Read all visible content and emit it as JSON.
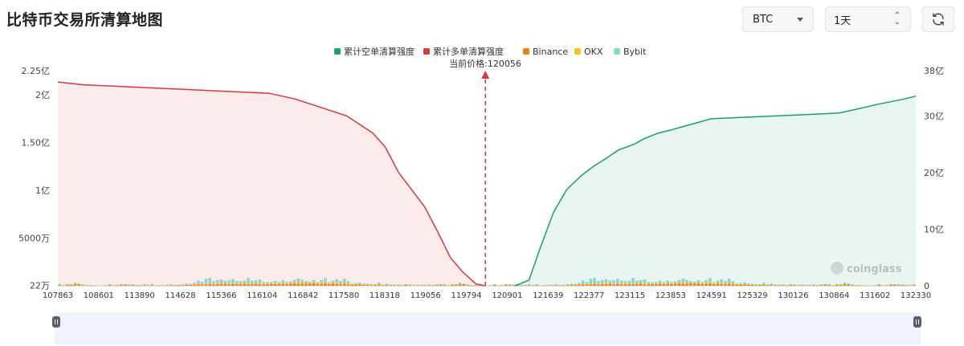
{
  "page": {
    "title": "比特币交易所清算地图"
  },
  "controls": {
    "symbol": "BTC",
    "timeframe": "1天",
    "refresh_icon": "refresh-icon"
  },
  "watermark": "coinglass",
  "chart_data": {
    "type": "bar",
    "legend": [
      {
        "name": "累计空单清算强度",
        "color": "#1a9e6f"
      },
      {
        "name": "累计多单清算强度",
        "color": "#d9363e"
      },
      {
        "name": "Binance",
        "color": "#f07f16"
      },
      {
        "name": "OKX",
        "color": "#f5c518"
      },
      {
        "name": "Bybit",
        "color": "#8fd3d6"
      }
    ],
    "legend_position": "top-center",
    "current_price_label": "当前价格:120056",
    "current_price": 120056,
    "x_ticks": [
      "107863",
      "108601",
      "113890",
      "114628",
      "115366",
      "116104",
      "116842",
      "117580",
      "118318",
      "119056",
      "119794",
      "120901",
      "121639",
      "122377",
      "123115",
      "123853",
      "124591",
      "125329",
      "130126",
      "130864",
      "131602",
      "132330"
    ],
    "y_left": {
      "ticks": [
        "22万",
        "5000万",
        "1亿",
        "1.50亿",
        "2亿",
        "2.25亿"
      ],
      "range": [
        0,
        225000000
      ]
    },
    "y_right": {
      "ticks": [
        "0",
        "10亿",
        "20亿",
        "30亿",
        "38亿"
      ],
      "range": [
        0,
        3800000000
      ]
    },
    "bar_count": 223,
    "bar_pattern": [
      [
        0.002,
        0.002,
        0.004
      ],
      [
        0.001,
        0.001,
        0.001
      ],
      [
        0.005,
        0.001,
        0.002
      ],
      [
        0.004,
        0.002,
        0.001
      ],
      [
        0.007,
        0.003,
        0.005
      ],
      [
        0.006,
        0.002,
        0.003
      ],
      [
        0.003,
        0.001,
        0.003
      ],
      [
        0.001,
        0.001,
        0.002
      ],
      [
        0.001,
        0.001,
        0.002
      ],
      [
        0.001,
        0.0,
        0.001
      ],
      [
        0.001,
        0.001,
        0.0
      ],
      [
        0.0,
        0.0,
        0.0
      ],
      [
        0.002,
        0.0,
        0.001
      ],
      [
        0.004,
        0.002,
        0.002
      ],
      [
        0.001,
        0.001,
        0.001
      ],
      [
        0.002,
        0.001,
        0.001
      ],
      [
        0.005,
        0.001,
        0.002
      ],
      [
        0.005,
        0.001,
        0.001
      ],
      [
        0.003,
        0.002,
        0.002
      ],
      [
        0.004,
        0.001,
        0.001
      ],
      [
        0.001,
        0.002,
        0.001
      ],
      [
        0.002,
        0.001,
        0.002
      ],
      [
        0.003,
        0.002,
        0.003
      ],
      [
        0.002,
        0.001,
        0.002
      ],
      [
        0.002,
        0.002,
        0.004
      ],
      [
        0.001,
        0.001,
        0.0
      ],
      [
        0.001,
        0.001,
        0.001
      ],
      [
        0.002,
        0.001,
        0.001
      ],
      [
        0.001,
        0.002,
        0.003
      ],
      [
        0.003,
        0.002,
        0.002
      ],
      [
        0.002,
        0.001,
        0.001
      ],
      [
        0.002,
        0.002,
        0.001
      ],
      [
        0.003,
        0.002,
        0.002
      ],
      [
        0.004,
        0.002,
        0.004
      ],
      [
        0.004,
        0.002,
        0.003
      ],
      [
        0.005,
        0.003,
        0.006
      ],
      [
        0.006,
        0.002,
        0.016
      ],
      [
        0.006,
        0.004,
        0.008
      ],
      [
        0.006,
        0.005,
        0.022
      ],
      [
        0.008,
        0.005,
        0.024
      ],
      [
        0.006,
        0.004,
        0.012
      ],
      [
        0.008,
        0.004,
        0.015
      ],
      [
        0.008,
        0.006,
        0.016
      ],
      [
        0.01,
        0.003,
        0.011
      ],
      [
        0.006,
        0.003,
        0.017
      ],
      [
        0.01,
        0.004,
        0.018
      ],
      [
        0.007,
        0.005,
        0.011
      ],
      [
        0.007,
        0.005,
        0.01
      ],
      [
        0.008,
        0.007,
        0.009
      ],
      [
        0.007,
        0.003,
        0.027
      ],
      [
        0.007,
        0.005,
        0.012
      ],
      [
        0.01,
        0.005,
        0.011
      ],
      [
        0.006,
        0.006,
        0.018
      ],
      [
        0.006,
        0.003,
        0.009
      ],
      [
        0.008,
        0.004,
        0.005
      ],
      [
        0.008,
        0.003,
        0.007
      ],
      [
        0.009,
        0.003,
        0.011
      ],
      [
        0.008,
        0.003,
        0.006
      ],
      [
        0.009,
        0.005,
        0.011
      ],
      [
        0.008,
        0.004,
        0.006
      ],
      [
        0.01,
        0.004,
        0.007
      ],
      [
        0.012,
        0.006,
        0.009
      ],
      [
        0.01,
        0.007,
        0.017
      ],
      [
        0.01,
        0.005,
        0.013
      ],
      [
        0.011,
        0.004,
        0.007
      ],
      [
        0.01,
        0.003,
        0.006
      ],
      [
        0.012,
        0.006,
        0.009
      ],
      [
        0.008,
        0.004,
        0.006
      ],
      [
        0.009,
        0.006,
        0.012
      ],
      [
        0.012,
        0.005,
        0.018
      ],
      [
        0.008,
        0.004,
        0.005
      ],
      [
        0.011,
        0.004,
        0.009
      ],
      [
        0.008,
        0.006,
        0.017
      ],
      [
        0.008,
        0.005,
        0.01
      ],
      [
        0.01,
        0.006,
        0.017
      ],
      [
        0.006,
        0.003,
        0.012
      ],
      [
        0.004,
        0.004,
        0.003
      ],
      [
        0.006,
        0.002,
        0.005
      ],
      [
        0.007,
        0.003,
        0.006
      ],
      [
        0.004,
        0.002,
        0.005
      ],
      [
        0.004,
        0.002,
        0.004
      ],
      [
        0.003,
        0.002,
        0.003
      ],
      [
        0.004,
        0.002,
        0.002
      ],
      [
        0.005,
        0.002,
        0.008
      ],
      [
        0.003,
        0.001,
        0.003
      ],
      [
        0.003,
        0.002,
        0.006
      ],
      [
        0.003,
        0.001,
        0.002
      ],
      [
        0.003,
        0.001,
        0.001
      ],
      [
        0.003,
        0.001,
        0.002
      ],
      [
        0.002,
        0.001,
        0.001
      ],
      [
        0.004,
        0.002,
        0.002
      ],
      [
        0.003,
        0.002,
        0.001
      ],
      [
        0.002,
        0.001,
        0.002
      ],
      [
        0.003,
        0.001,
        0.001
      ],
      [
        0.002,
        0.001,
        0.002
      ],
      [
        0.002,
        0.001,
        0.002
      ],
      [
        0.003,
        0.001,
        0.002
      ],
      [
        0.002,
        0.001,
        0.001
      ],
      [
        0.003,
        0.002,
        0.002
      ],
      [
        0.004,
        0.002,
        0.002
      ]
    ],
    "bar_scale_left": 225000000,
    "short_liq_cumulative_curve": {
      "color": "#1a9e6f",
      "x": [
        120901,
        121300,
        121639,
        122000,
        122377,
        122800,
        123115,
        123500,
        123853,
        124300,
        124591,
        125000,
        125329,
        126500,
        130126,
        130500,
        130864,
        131200,
        131602,
        132000,
        132330
      ],
      "y": [
        0,
        100000000,
        700000000,
        1300000000,
        1700000000,
        1950000000,
        2100000000,
        2250000000,
        2400000000,
        2500000000,
        2600000000,
        2700000000,
        2750000000,
        2950000000,
        3050000000,
        3100000000,
        3150000000,
        3200000000,
        3250000000,
        3300000000,
        3350000000
      ]
    },
    "long_liq_cumulative_curve": {
      "color": "#d9363e",
      "x": [
        107863,
        108601,
        113890,
        114628,
        115366,
        116104,
        116842,
        117200,
        117580,
        117950,
        118318,
        118700,
        119056,
        119400,
        119794,
        120056
      ],
      "y": [
        3600000000,
        3550000000,
        3400000000,
        3300000000,
        3150000000,
        3000000000,
        2700000000,
        2450000000,
        2000000000,
        1700000000,
        1400000000,
        950000000,
        500000000,
        250000000,
        30000000,
        0
      ]
    }
  }
}
